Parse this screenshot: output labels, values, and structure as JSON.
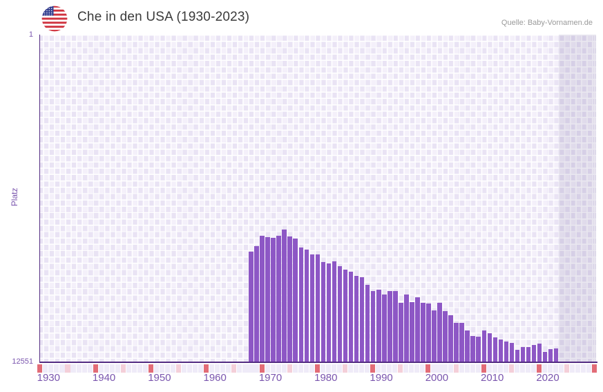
{
  "header": {
    "title": "Che in den USA (1930-2023)",
    "source": "Quelle: Baby-Vornamen.de",
    "flag_icon": "us-flag"
  },
  "chart_data": {
    "type": "bar",
    "title": "Che in den USA (1930-2023)",
    "ylabel": "Platz",
    "y_axis": {
      "top_label": "1",
      "bottom_label": "12551",
      "min": 1,
      "max": 12551,
      "inverted": true
    },
    "x_axis": {
      "range_start": 1930,
      "range_end": 2030,
      "tick_labels": [
        "1930",
        "1940",
        "1950",
        "1960",
        "1970",
        "1980",
        "1990",
        "2000",
        "2010",
        "2020"
      ]
    },
    "no_data_band": {
      "start_year": 2024,
      "end_year": 2030
    },
    "years": [
      1968,
      1969,
      1970,
      1971,
      1972,
      1973,
      1974,
      1975,
      1976,
      1977,
      1978,
      1979,
      1980,
      1981,
      1982,
      1983,
      1984,
      1985,
      1986,
      1987,
      1988,
      1989,
      1990,
      1991,
      1992,
      1993,
      1994,
      1995,
      1996,
      1997,
      1998,
      1999,
      2000,
      2001,
      2002,
      2003,
      2004,
      2005,
      2006,
      2007,
      2008,
      2009,
      2010,
      2011,
      2012,
      2013,
      2014,
      2015,
      2016,
      2017,
      2018,
      2019,
      2020,
      2021,
      2022,
      2023
    ],
    "ranks": [
      8320,
      8100,
      7700,
      7770,
      7790,
      7700,
      7460,
      7720,
      7810,
      8160,
      8230,
      8430,
      8410,
      8710,
      8770,
      8690,
      8870,
      9000,
      9090,
      9240,
      9300,
      9580,
      9820,
      9770,
      9950,
      9810,
      9810,
      10260,
      9960,
      10240,
      10060,
      10280,
      10300,
      10570,
      10260,
      10590,
      10750,
      11030,
      11050,
      11340,
      11540,
      11560,
      11340,
      11430,
      11600,
      11680,
      11760,
      11810,
      12070,
      11960,
      11960,
      11900,
      11840,
      12140,
      12050,
      12020
    ],
    "colors": {
      "bar": "#8d57c5",
      "axis": "#532c82",
      "axis_label": "#7a55ae",
      "tick_decade": "#e26c77",
      "tick_half": "#f4cfd9",
      "tick_plain": "#efebf8",
      "checker_light": "#f4f0fa",
      "checker_dark": "#e9e3f4",
      "band_tint": "rgba(90,75,138,0.13)"
    }
  }
}
